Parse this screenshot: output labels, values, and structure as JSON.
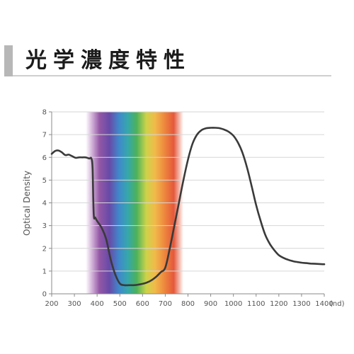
{
  "header": {
    "title": "光学濃度特性"
  },
  "chart_data": {
    "type": "line",
    "title": "光学濃度特性",
    "ylabel": "Optical Density",
    "x_unit": "(nd)",
    "xlim": [
      200,
      1400
    ],
    "ylim": [
      0,
      8
    ],
    "x_ticks": [
      "200",
      "300",
      "400",
      "500",
      "600",
      "700",
      "800",
      "900",
      "1000",
      "1100",
      "1200",
      "1300",
      "1400"
    ],
    "y_ticks": [
      "0",
      "1",
      "2",
      "3",
      "4",
      "5",
      "6",
      "7",
      "8"
    ],
    "grid": true,
    "legend": "none",
    "spectrum_band": {
      "from": 350,
      "to": 780
    },
    "series": [
      {
        "color": "#3a3a3a",
        "x": [
          200,
          215,
          230,
          245,
          260,
          275,
          290,
          305,
          320,
          335,
          350,
          365,
          375,
          380,
          385,
          392,
          400,
          420,
          440,
          460,
          480,
          500,
          520,
          540,
          560,
          580,
          600,
          620,
          640,
          660,
          680,
          700,
          720,
          740,
          760,
          780,
          800,
          820,
          840,
          860,
          880,
          900,
          920,
          940,
          960,
          980,
          1000,
          1020,
          1040,
          1060,
          1080,
          1100,
          1120,
          1140,
          1160,
          1180,
          1200,
          1220,
          1240,
          1260,
          1280,
          1300,
          1320,
          1340,
          1360,
          1380,
          1400
        ],
        "y": [
          6.15,
          6.28,
          6.3,
          6.22,
          6.1,
          6.12,
          6.05,
          5.98,
          6.0,
          6.0,
          6.0,
          5.95,
          5.95,
          5.5,
          3.5,
          3.35,
          3.2,
          2.9,
          2.4,
          1.5,
          0.85,
          0.45,
          0.38,
          0.38,
          0.38,
          0.4,
          0.44,
          0.5,
          0.6,
          0.75,
          0.95,
          1.15,
          2.0,
          3.0,
          4.0,
          5.0,
          5.9,
          6.6,
          7.0,
          7.2,
          7.28,
          7.3,
          7.3,
          7.28,
          7.22,
          7.12,
          6.95,
          6.65,
          6.2,
          5.55,
          4.75,
          3.9,
          3.2,
          2.6,
          2.2,
          1.92,
          1.7,
          1.58,
          1.5,
          1.44,
          1.4,
          1.37,
          1.35,
          1.33,
          1.32,
          1.31,
          1.3
        ]
      }
    ]
  }
}
